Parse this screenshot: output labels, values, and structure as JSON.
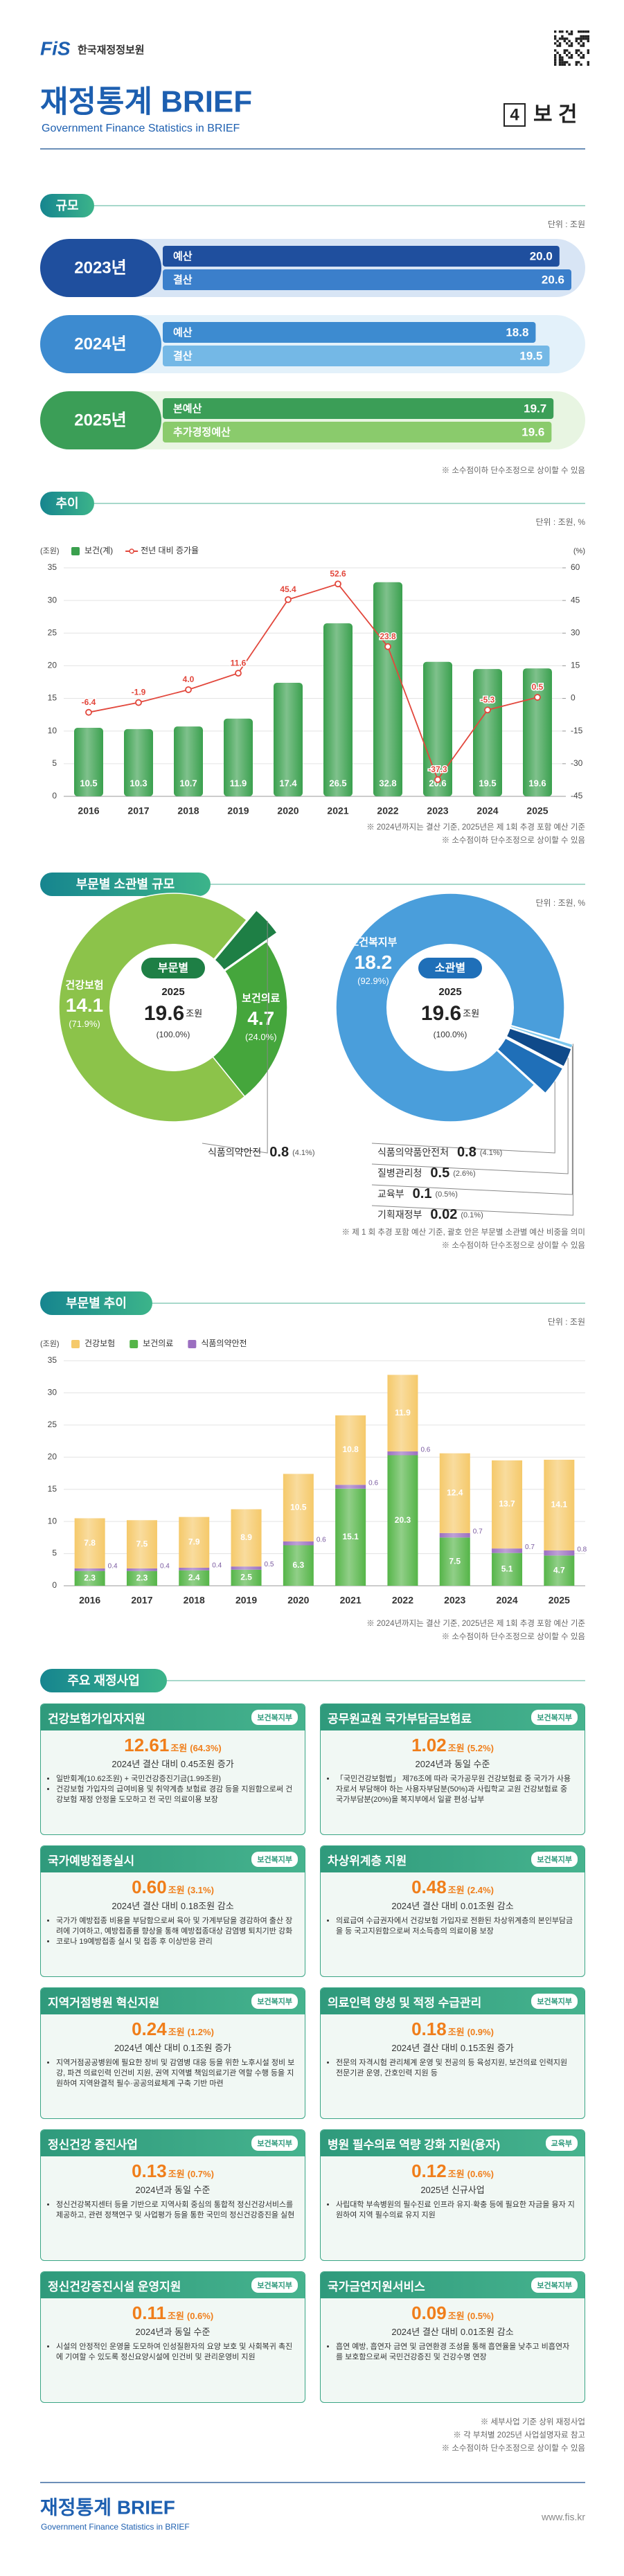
{
  "header": {
    "logo": "FiS",
    "org": "한국재정정보원",
    "title": "재정통계 BRIEF",
    "subtitle": "Government Finance Statistics in BRIEF",
    "section_no": "4",
    "section": "보 건"
  },
  "chart_data": [
    {
      "type": "hbar",
      "title": "규모",
      "unit": "단위 : 조원",
      "groups": [
        {
          "name": "2023년",
          "colors": [
            "#1f4f9e",
            "#3b7fcb"
          ],
          "categories": [
            "예산",
            "결산"
          ],
          "values": [
            20.0,
            20.6
          ],
          "value_labels": [
            "20.0",
            "20.6"
          ]
        },
        {
          "name": "2024년",
          "colors": [
            "#3d8bd0",
            "#74b8e6"
          ],
          "categories": [
            "예산",
            "결산"
          ],
          "values": [
            18.8,
            19.5
          ]
        },
        {
          "name": "2025년",
          "colors": [
            "#3b9e57",
            "#8acb6c"
          ],
          "categories": [
            "본예산",
            "추가경정예산"
          ],
          "values": [
            19.7,
            19.6
          ]
        }
      ],
      "notes": [
        "※ 소수점이하 단수조정으로 상이할 수 있음"
      ]
    },
    {
      "type": "bar_line",
      "title": "추이",
      "unit": "단위 : 조원, %",
      "categories": [
        "2016",
        "2017",
        "2018",
        "2019",
        "2020",
        "2021",
        "2022",
        "2023",
        "2024",
        "2025"
      ],
      "series": [
        {
          "name": "보건(계)",
          "color": "#3aa04e",
          "values": [
            10.5,
            10.3,
            10.7,
            11.9,
            17.4,
            26.5,
            32.8,
            20.6,
            19.5,
            19.6
          ]
        },
        {
          "name": "전년 대비 증가율",
          "type": "line",
          "axis": "y2",
          "color": "#e2473c",
          "values": [
            -6.4,
            -1.9,
            4.0,
            11.6,
            45.4,
            52.6,
            23.8,
            -37.3,
            -5.3,
            0.5
          ],
          "value_labels": [
            "-6.4",
            "-1.9",
            "4.0",
            "11.6",
            "45.4",
            "52.6",
            "23.8",
            "-37.3",
            "-5.3",
            "0.5"
          ]
        }
      ],
      "ylim": [
        0,
        35
      ],
      "yticks": [
        0,
        5,
        10,
        15,
        20,
        25,
        30,
        35
      ],
      "y2lim": [
        -45,
        60
      ],
      "y2ticks": [
        -45,
        -30,
        -15,
        0,
        15,
        30,
        45,
        60
      ],
      "ylabel": "(조원)",
      "y2label": "(%)",
      "grid": true,
      "legend": "top-left",
      "notes": [
        "※ 2024년까지는 결산 기준, 2025년은 제 1회 추경 포함 예산 기준",
        "※ 소수점이하 단수조정으로 상이할 수 있음"
      ]
    },
    {
      "type": "pie",
      "title": "부문별 소관별 규모",
      "unit": "단위 : 조원, %",
      "pies": [
        {
          "center_title": "부문별",
          "year": "2025",
          "total": 19.6,
          "total_unit": "조원",
          "total_share_label": "(100.0%)",
          "categories": [
            "건강보험",
            "보건의료",
            "식품의약안전"
          ],
          "values": [
            14.1,
            4.7,
            0.8
          ],
          "shares": [
            71.9,
            24.0,
            4.1
          ],
          "share_labels": [
            "(71.9%)",
            "(24.0%)",
            "(4.1%)"
          ],
          "colors": [
            "#8cc34a",
            "#45a63c",
            "#1e7f45"
          ]
        },
        {
          "center_title": "소관별",
          "year": "2025",
          "total": 19.6,
          "total_unit": "조원",
          "total_share_label": "(100.0%)",
          "categories": [
            "보건복지부",
            "식품의약품안전처",
            "질병관리청",
            "교육부",
            "기획재정부"
          ],
          "values": [
            18.2,
            0.8,
            0.5,
            0.1,
            0.02
          ],
          "shares": [
            92.9,
            4.1,
            2.6,
            0.5,
            0.1
          ],
          "share_labels": [
            "(92.9%)",
            "(4.1%)",
            "(2.6%)",
            "(0.5%)",
            "(0.1%)"
          ],
          "colors": [
            "#4a9edb",
            "#1f6fb8",
            "#0f4a8a",
            "#7cc8ee",
            "#c3e5f6"
          ]
        }
      ],
      "notes": [
        "※ 제 1 회 추경 포함 예산 기준, 괄호 안은 부문별 소관별 예산 비중을 의미",
        "※ 소수점이하 단수조정으로 상이할 수 있음"
      ]
    },
    {
      "type": "stacked_bar",
      "title": "부문별 추이",
      "unit": "단위 : 조원",
      "categories": [
        "2016",
        "2017",
        "2018",
        "2019",
        "2020",
        "2021",
        "2022",
        "2023",
        "2024",
        "2025"
      ],
      "series": [
        {
          "name": "건강보험",
          "color": "#f5c96a",
          "values": [
            7.8,
            7.5,
            7.9,
            8.9,
            10.5,
            10.8,
            11.9,
            12.4,
            13.7,
            14.1
          ]
        },
        {
          "name": "보건의료",
          "color": "#55b548",
          "values": [
            2.3,
            2.3,
            2.4,
            2.5,
            6.3,
            15.1,
            20.3,
            7.5,
            5.1,
            4.7
          ]
        },
        {
          "name": "식품의약안전",
          "color": "#9b6fc0",
          "values": [
            0.4,
            0.4,
            0.4,
            0.5,
            0.6,
            0.6,
            0.6,
            0.7,
            0.7,
            0.8
          ]
        }
      ],
      "ylim": [
        0,
        35
      ],
      "yticks": [
        0,
        5,
        10,
        15,
        20,
        25,
        30,
        35
      ],
      "ylabel": "(조원)",
      "grid": true,
      "legend": "top-left",
      "notes": [
        "※ 2024년까지는 결산 기준, 2025년은 제 1회 추경 포함 예산 기준",
        "※ 소수점이하 단수조정으로 상이할 수 있음"
      ]
    }
  ],
  "programs": {
    "title": "주요 재정사업",
    "items": [
      {
        "name": "건강보험가입자지원",
        "ministry": "보건복지부",
        "amount": 12.61,
        "unit": "조원",
        "share_label": "(64.3%)",
        "change": "2024년 결산 대비 0.45조원 증가",
        "bullets": [
          "일반회계(10.62조원) + 국민건강증진기금(1.99조원)",
          "건강보험 가입자의 급여비용 및 취약계층 보험료 경감 등을 지원함으로써 건강보험 재정 안정을 도모하고 전 국민 의료이용 보장"
        ]
      },
      {
        "name": "공무원교원 국가부담금보험료",
        "ministry": "보건복지부",
        "amount": 1.02,
        "unit": "조원",
        "share_label": "(5.2%)",
        "change": "2024년과 동일 수준",
        "bullets": [
          "「국민건강보험법」 제76조에 따라 국가공무원 건강보험료 중 국가가 사용자로서 부담해야 하는 사용자부담분(50%)과 사립학교 교원 건강보험료 중 국가부담분(20%)을 복지부에서 일괄 편성·납부"
        ]
      },
      {
        "name": "국가예방접종실시",
        "ministry": "보건복지부",
        "amount": 0.6,
        "amount_label": "0.60",
        "unit": "조원",
        "share_label": "(3.1%)",
        "change": "2024년 결산 대비 0.18조원 감소",
        "bullets": [
          "국가가 예방접종 비용을 부담함으로써 육아 및 가계부담을 경감하여 출산 장려에 기여하고, 예방접종률 향상을 통해 예방접종대상 감염병 퇴치기반 강화",
          "코로나 19예방접종 실시 및 접종 후 이상반응 관리"
        ]
      },
      {
        "name": "차상위계층 지원",
        "ministry": "보건복지부",
        "amount": 0.48,
        "unit": "조원",
        "share_label": "(2.4%)",
        "change": "2024년 결산 대비 0.01조원 감소",
        "bullets": [
          "의료급여 수급권자에서 건강보험 가입자로 전환된 차상위계층의 본인부담금을 등 국고지원함으로써 저소득층의 의료이용 보장"
        ]
      },
      {
        "name": "지역거점병원 혁신지원",
        "ministry": "보건복지부",
        "amount": 0.24,
        "unit": "조원",
        "share_label": "(1.2%)",
        "change": "2024년 예산 대비 0.1조원 증가",
        "bullets": [
          "지역거점공공병원에 필요한 장비 및 감염병 대응 등을 위한 노후시설 정비 보강, 파견 의료인력 인건비 지원, 권역 지역별 책임의료기관 역할 수행 등을 지원하여 지역완결적 필수·공공의료체계 구축 기반 마련"
        ]
      },
      {
        "name": "의료인력 양성 및 적정 수급관리",
        "ministry": "보건복지부",
        "amount": 0.18,
        "unit": "조원",
        "share_label": "(0.9%)",
        "change": "2024년 결산 대비 0.15조원 증가",
        "bullets": [
          "전문의 자격시험 관리체계 운영 및 전공의 등 육성지원, 보건의료 인력지원 전문기관 운영, 간호인력 지원 등"
        ]
      },
      {
        "name": "정신건강 증진사업",
        "ministry": "보건복지부",
        "amount": 0.13,
        "unit": "조원",
        "share_label": "(0.7%)",
        "change": "2024년과 동일 수준",
        "bullets": [
          "정신건강복지센터 등을 기반으로 지역사회 중심의 통합적 정신건강서비스를 제공하고, 관련 정책연구 및 사업평가 등을 통한 국민의 정신건강증진을 실현"
        ]
      },
      {
        "name": "병원 필수의료 역량 강화 지원(융자)",
        "ministry": "교육부",
        "amount": 0.12,
        "unit": "조원",
        "share_label": "(0.6%)",
        "change": "2025년 신규사업",
        "bullets": [
          "사립대학 부속병원의 필수진료 인프라 유지·확충 등에 필요한 자금을 융자 지원하여 지역 필수의료 유지 지원"
        ]
      },
      {
        "name": "정신건강증진시설 운영지원",
        "ministry": "보건복지부",
        "amount": 0.11,
        "unit": "조원",
        "share_label": "(0.6%)",
        "change": "2024년과 동일 수준",
        "bullets": [
          "시설의 안정적인 운영을 도모하여 인성질환자의 요양 보호 및 사회복귀 촉진에 기여할 수 있도록 정신요양시설에 인건비 및 관리운영비 지원"
        ]
      },
      {
        "name": "국가금연지원서비스",
        "ministry": "보건복지부",
        "amount": 0.09,
        "unit": "조원",
        "share_label": "(0.5%)",
        "change": "2024년 결산 대비 0.01조원 감소",
        "bullets": [
          "흡연 예방, 흡연자 금연 및 금연환경 조성을 통해 흡연율을 낮추고 비흡연자를 보호함으로써 국민건강증진 및 건강수명 연장"
        ]
      }
    ],
    "notes": [
      "※ 세부사업 기준 상위 재정사업",
      "※ 각 부처별 2025년 사업설명자료 참고",
      "※ 소수점이하 단수조정으로 상이할 수 있음"
    ]
  },
  "footer": {
    "title": "재정통계 BRIEF",
    "subtitle": "Government Finance Statistics in BRIEF",
    "url": "www.fis.kr"
  }
}
